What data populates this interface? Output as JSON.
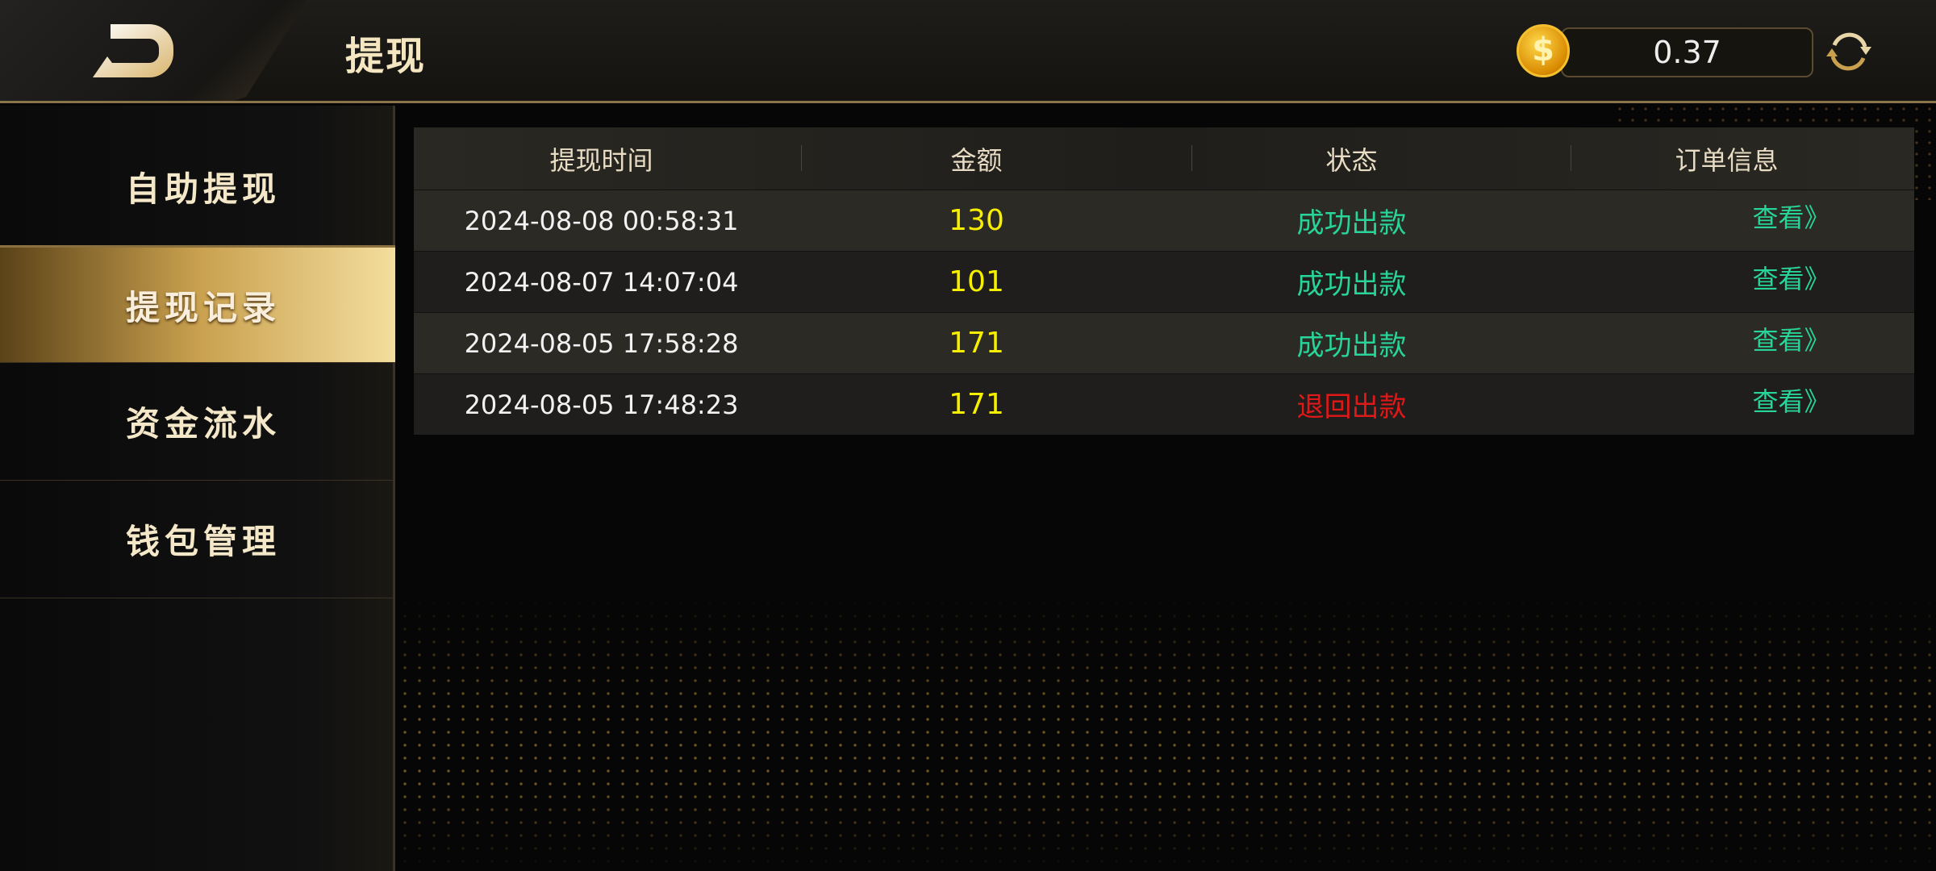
{
  "header": {
    "title": "提现",
    "balance": "0.37",
    "coin_symbol": "$"
  },
  "sidebar": {
    "items": [
      {
        "label": "自助提现",
        "active": false
      },
      {
        "label": "提现记录",
        "active": true
      },
      {
        "label": "资金流水",
        "active": false
      },
      {
        "label": "钱包管理",
        "active": false
      }
    ]
  },
  "table": {
    "headers": [
      "提现时间",
      "金额",
      "状态",
      "订单信息"
    ],
    "rows": [
      {
        "time": "2024-08-08 00:58:31",
        "amount": "130",
        "status": "成功出款",
        "action": "查看》"
      },
      {
        "time": "2024-08-07 14:07:04",
        "amount": "101",
        "status": "成功出款",
        "action": "查看》"
      },
      {
        "time": "2024-08-05 17:58:28",
        "amount": "171",
        "status": "成功出款",
        "action": "查看》"
      },
      {
        "time": "2024-08-05 17:48:23",
        "amount": "171",
        "status": "退回出款",
        "action": "查看》"
      }
    ]
  },
  "colors": {
    "success": "#27d49a",
    "returned": "#e01818",
    "amount": "#f6f000",
    "accent": "#c9a04e"
  }
}
